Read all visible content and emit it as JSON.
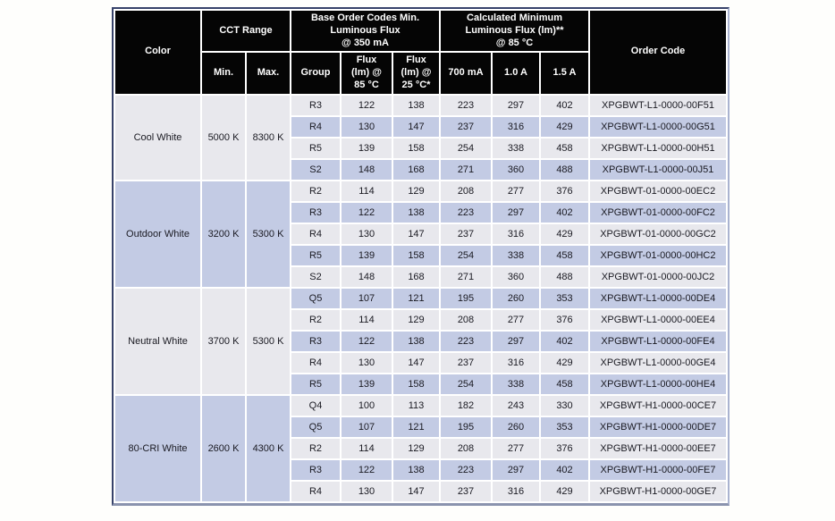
{
  "table": {
    "header": {
      "color": "Color",
      "cct_range": "CCT Range",
      "cct_min": "Min.",
      "cct_max": "Max.",
      "base_order_codes": "Base Order Codes Min.\nLuminous Flux\n@ 350 mA",
      "group": "Group",
      "flux_85": "Flux\n(lm) @\n85 °C",
      "flux_25": "Flux\n(lm) @\n25 °C*",
      "calculated_min": "Calculated Minimum\nLuminous Flux (lm)**\n@ 85 °C",
      "i_700": "700 mA",
      "i_1_0": "1.0 A",
      "i_1_5": "1.5 A",
      "order_code": "Order Code"
    },
    "groups": [
      {
        "color": "Cool White",
        "cct_min": "5000 K",
        "cct_max": "8300 K",
        "rows": [
          [
            "R3",
            "122",
            "138",
            "223",
            "297",
            "402",
            "XPGBWT-L1-0000-00F51"
          ],
          [
            "R4",
            "130",
            "147",
            "237",
            "316",
            "429",
            "XPGBWT-L1-0000-00G51"
          ],
          [
            "R5",
            "139",
            "158",
            "254",
            "338",
            "458",
            "XPGBWT-L1-0000-00H51"
          ],
          [
            "S2",
            "148",
            "168",
            "271",
            "360",
            "488",
            "XPGBWT-L1-0000-00J51"
          ]
        ]
      },
      {
        "color": "Outdoor White",
        "cct_min": "3200 K",
        "cct_max": "5300 K",
        "rows": [
          [
            "R2",
            "114",
            "129",
            "208",
            "277",
            "376",
            "XPGBWT-01-0000-00EC2"
          ],
          [
            "R3",
            "122",
            "138",
            "223",
            "297",
            "402",
            "XPGBWT-01-0000-00FC2"
          ],
          [
            "R4",
            "130",
            "147",
            "237",
            "316",
            "429",
            "XPGBWT-01-0000-00GC2"
          ],
          [
            "R5",
            "139",
            "158",
            "254",
            "338",
            "458",
            "XPGBWT-01-0000-00HC2"
          ],
          [
            "S2",
            "148",
            "168",
            "271",
            "360",
            "488",
            "XPGBWT-01-0000-00JC2"
          ]
        ]
      },
      {
        "color": "Neutral White",
        "cct_min": "3700 K",
        "cct_max": "5300 K",
        "rows": [
          [
            "Q5",
            "107",
            "121",
            "195",
            "260",
            "353",
            "XPGBWT-L1-0000-00DE4"
          ],
          [
            "R2",
            "114",
            "129",
            "208",
            "277",
            "376",
            "XPGBWT-L1-0000-00EE4"
          ],
          [
            "R3",
            "122",
            "138",
            "223",
            "297",
            "402",
            "XPGBWT-L1-0000-00FE4"
          ],
          [
            "R4",
            "130",
            "147",
            "237",
            "316",
            "429",
            "XPGBWT-L1-0000-00GE4"
          ],
          [
            "R5",
            "139",
            "158",
            "254",
            "338",
            "458",
            "XPGBWT-L1-0000-00HE4"
          ]
        ]
      },
      {
        "color": "80-CRI White",
        "cct_min": "2600 K",
        "cct_max": "4300 K",
        "rows": [
          [
            "Q4",
            "100",
            "113",
            "182",
            "243",
            "330",
            "XPGBWT-H1-0000-00CE7"
          ],
          [
            "Q5",
            "107",
            "121",
            "195",
            "260",
            "353",
            "XPGBWT-H1-0000-00DE7"
          ],
          [
            "R2",
            "114",
            "129",
            "208",
            "277",
            "376",
            "XPGBWT-H1-0000-00EE7"
          ],
          [
            "R3",
            "122",
            "138",
            "223",
            "297",
            "402",
            "XPGBWT-H1-0000-00FE7"
          ],
          [
            "R4",
            "130",
            "147",
            "237",
            "316",
            "429",
            "XPGBWT-H1-0000-00GE7"
          ]
        ]
      }
    ],
    "colors": {
      "header_bg": "#050505",
      "header_text": "#ffffff",
      "row_band_gray": "#e8e8ed",
      "row_band_blue": "#c3cbe4",
      "border_dark": "#37426a",
      "border_light": "#aab3d0",
      "border_bottom": "#8a93ae",
      "body_text": "#1a1a22"
    }
  }
}
